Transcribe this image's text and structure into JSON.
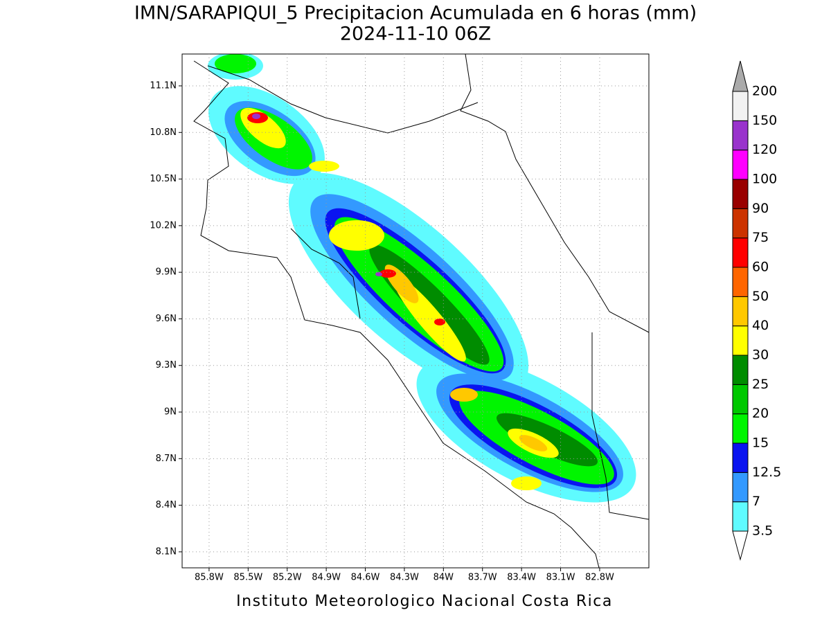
{
  "chart_data": {
    "type": "map",
    "title": "IMN/SARAPIQUI_5 Precipitacion Acumulada en 6 horas (mm)",
    "subtitle": "2024-11-10 06Z",
    "footer": "Instituto Meteorologico Nacional Costa Rica",
    "xlim": [
      -86.007,
      -82.422
    ],
    "ylim": [
      7.997,
      11.305
    ],
    "xticks": [
      {
        "value": -85.8,
        "label": "85.8W"
      },
      {
        "value": -85.5,
        "label": "85.5W"
      },
      {
        "value": -85.2,
        "label": "85.2W"
      },
      {
        "value": -84.9,
        "label": "84.9W"
      },
      {
        "value": -84.6,
        "label": "84.6W"
      },
      {
        "value": -84.3,
        "label": "84.3W"
      },
      {
        "value": -84.0,
        "label": "84W"
      },
      {
        "value": -83.7,
        "label": "83.7W"
      },
      {
        "value": -83.4,
        "label": "83.4W"
      },
      {
        "value": -83.1,
        "label": "83.1W"
      },
      {
        "value": -82.8,
        "label": "82.8W"
      }
    ],
    "yticks": [
      {
        "value": 8.1,
        "label": "8.1N"
      },
      {
        "value": 8.4,
        "label": "8.4N"
      },
      {
        "value": 8.7,
        "label": "8.7N"
      },
      {
        "value": 9.0,
        "label": "9N"
      },
      {
        "value": 9.3,
        "label": "9.3N"
      },
      {
        "value": 9.6,
        "label": "9.6N"
      },
      {
        "value": 9.9,
        "label": "9.9N"
      },
      {
        "value": 10.2,
        "label": "10.2N"
      },
      {
        "value": 10.5,
        "label": "10.5N"
      },
      {
        "value": 10.8,
        "label": "10.8N"
      },
      {
        "value": 11.1,
        "label": "11.1N"
      }
    ],
    "grid": true,
    "colorbar": {
      "levels": [
        3.5,
        7,
        12.5,
        15,
        20,
        25,
        30,
        40,
        50,
        60,
        75,
        90,
        100,
        120,
        150,
        200
      ],
      "colors": [
        "#5ffbff",
        "#3399ff",
        "#0a14f0",
        "#00f500",
        "#00c800",
        "#008c00",
        "#ffff00",
        "#ffc800",
        "#ff6600",
        "#ff0000",
        "#cc3300",
        "#990000",
        "#ff00ff",
        "#9933cc",
        "#f2f2f2"
      ],
      "under_color": "#ffffff",
      "over_color": "#aaaaaa"
    }
  }
}
